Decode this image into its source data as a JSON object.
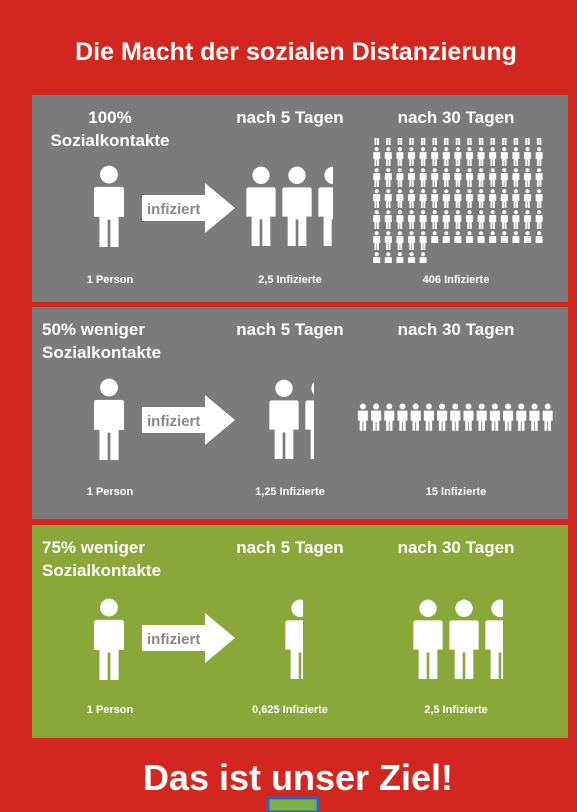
{
  "title": "Die Macht der sozialen Distanzierung",
  "panels": [
    {
      "heading": [
        "100%",
        "Sozialkontakte"
      ],
      "arrow_label": "infiziert",
      "col2_label": "nach 5 Tagen",
      "col3_label": "nach 30 Tagen",
      "captions": [
        "1 Person",
        "2,5 Infizierte",
        "406 Infizierte"
      ]
    },
    {
      "heading": [
        "50% weniger",
        "Sozialkontakte"
      ],
      "arrow_label": "infiziert",
      "col2_label": "nach 5 Tagen",
      "col3_label": "nach 30 Tagen",
      "captions": [
        "1 Person",
        "1,25 Infizierte",
        "15 Infizierte"
      ]
    },
    {
      "heading": [
        "75% weniger",
        "Sozialkontakte"
      ],
      "arrow_label": "infiziert",
      "col2_label": "nach 5 Tagen",
      "col3_label": "nach 30 Tagen",
      "captions": [
        "1 Person",
        "0,625 Infizierte",
        "2,5 Infizierte"
      ]
    }
  ],
  "footer": "Das ist unser Ziel!"
}
